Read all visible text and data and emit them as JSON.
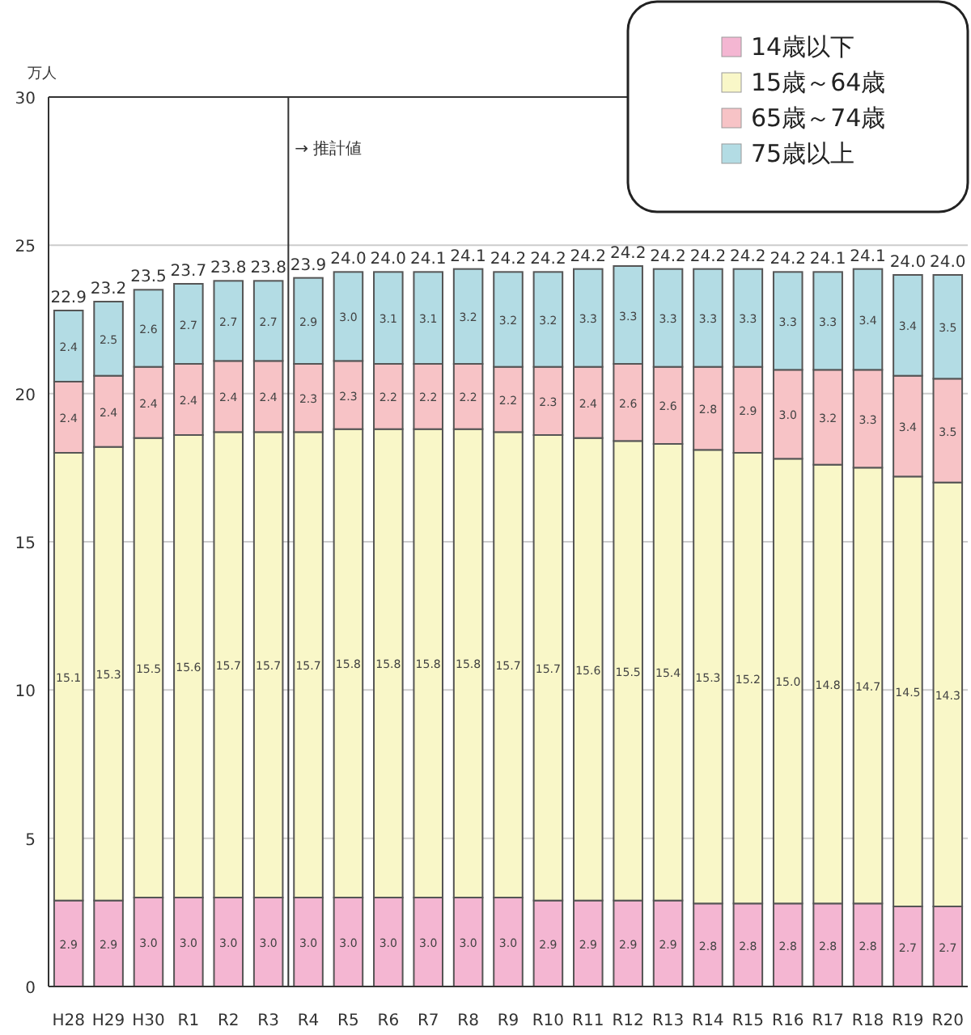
{
  "chart_data": {
    "type": "bar",
    "stacked": true,
    "ylabel": "万人",
    "categories": [
      "H28",
      "H29",
      "H30",
      "R1",
      "R2",
      "R3",
      "R4",
      "R5",
      "R6",
      "R7",
      "R8",
      "R9",
      "R10",
      "R11",
      "R12",
      "R13",
      "R14",
      "R15",
      "R16",
      "R17",
      "R18",
      "R19",
      "R20"
    ],
    "series": [
      {
        "name": "14歳以下",
        "color": "#f4b6d2",
        "values": [
          2.9,
          2.9,
          3.0,
          3.0,
          3.0,
          3.0,
          3.0,
          3.0,
          3.0,
          3.0,
          3.0,
          3.0,
          2.9,
          2.9,
          2.9,
          2.9,
          2.8,
          2.8,
          2.8,
          2.8,
          2.8,
          2.7,
          2.7
        ],
        "value_labels": [
          "2.9",
          "2.9",
          "3.0",
          "3.0",
          "3.0",
          "3.0",
          "3.0",
          "3.0",
          "3.0",
          "3.0",
          "3.0",
          "3.0",
          "2.9",
          "2.9",
          "2.9",
          "2.9",
          "2.8",
          "2.8",
          "2.8",
          "2.8",
          "2.8",
          "2.7",
          "2.7"
        ]
      },
      {
        "name": "15歳～64歳",
        "color": "#f9f7c8",
        "values": [
          15.1,
          15.3,
          15.5,
          15.6,
          15.7,
          15.7,
          15.7,
          15.8,
          15.8,
          15.8,
          15.8,
          15.7,
          15.7,
          15.6,
          15.5,
          15.4,
          15.3,
          15.2,
          15.0,
          14.8,
          14.7,
          14.5,
          14.3
        ],
        "value_labels": [
          "15.1",
          "15.3",
          "15.5",
          "15.6",
          "15.7",
          "15.7",
          "15.7",
          "15.8",
          "15.8",
          "15.8",
          "15.8",
          "15.7",
          "15.7",
          "15.6",
          "15.5",
          "15.4",
          "15.3",
          "15.2",
          "15.0",
          "14.8",
          "14.7",
          "14.5",
          "14.3"
        ]
      },
      {
        "name": "65歳～74歳",
        "color": "#f7c3c6",
        "values": [
          2.4,
          2.4,
          2.4,
          2.4,
          2.4,
          2.4,
          2.3,
          2.3,
          2.2,
          2.2,
          2.2,
          2.2,
          2.3,
          2.4,
          2.6,
          2.6,
          2.8,
          2.9,
          3.0,
          3.2,
          3.3,
          3.4,
          3.5
        ],
        "value_labels": [
          "2.4",
          "2.4",
          "2.4",
          "2.4",
          "2.4",
          "2.4",
          "2.3",
          "2.3",
          "2.2",
          "2.2",
          "2.2",
          "2.2",
          "2.3",
          "2.4",
          "2.6",
          "2.6",
          "2.8",
          "2.9",
          "3.0",
          "3.2",
          "3.3",
          "3.4",
          "3.5"
        ]
      },
      {
        "name": "75歳以上",
        "color": "#b3dce4",
        "values": [
          2.4,
          2.5,
          2.6,
          2.7,
          2.7,
          2.7,
          2.9,
          3.0,
          3.1,
          3.1,
          3.2,
          3.2,
          3.2,
          3.3,
          3.3,
          3.3,
          3.3,
          3.3,
          3.3,
          3.3,
          3.4,
          3.4,
          3.5
        ],
        "value_labels": [
          "2.4",
          "2.5",
          "2.6",
          "2.7",
          "2.7",
          "2.7",
          "2.9",
          "3.0",
          "3.1",
          "3.1",
          "3.2",
          "3.2",
          "3.2",
          "3.3",
          "3.3",
          "3.3",
          "3.3",
          "3.3",
          "3.3",
          "3.3",
          "3.4",
          "3.4",
          "3.5"
        ]
      }
    ],
    "totals": [
      "22.9",
      "23.2",
      "23.5",
      "23.7",
      "23.8",
      "23.8",
      "23.9",
      "24.0",
      "24.0",
      "24.1",
      "24.1",
      "24.2",
      "24.2",
      "24.2",
      "24.2",
      "24.2",
      "24.2",
      "24.2",
      "24.2",
      "24.1",
      "24.1",
      "24.0",
      "24.0"
    ],
    "ylim": [
      0,
      30
    ],
    "yticks": [
      0,
      5,
      10,
      15,
      20,
      25,
      30
    ],
    "grid": "y",
    "legend": "top right",
    "ref_lines": [
      {
        "axis": "x",
        "value": "R4",
        "label": "→ 推計値"
      }
    ]
  }
}
